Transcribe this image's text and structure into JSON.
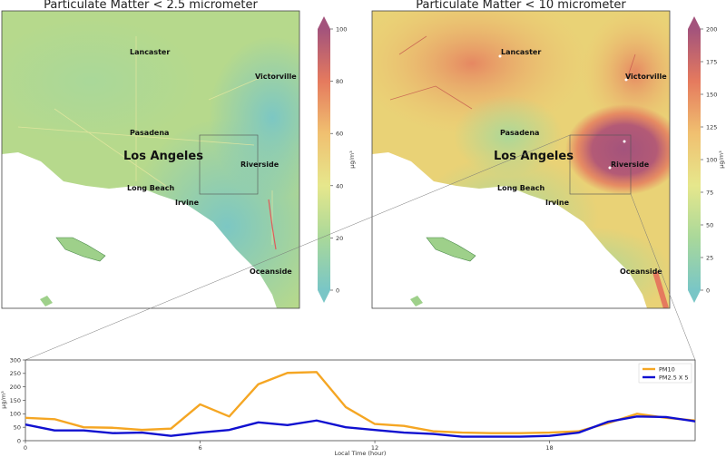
{
  "maps": [
    {
      "title": "Particulate Matter < 2.5 micrometer",
      "cities": {
        "lancaster": "Lancaster",
        "victorville": "Victorville",
        "pasadena": "Pasadena",
        "los_angeles": "Los Angeles",
        "riverside": "Riverside",
        "long_beach": "Long Beach",
        "irvine": "Irvine",
        "oceanside": "Oceanside"
      },
      "colorbar": {
        "min": 0,
        "max": 100,
        "ticks": [
          "0",
          "20",
          "40",
          "60",
          "80",
          "100"
        ],
        "unit": "μg/m³"
      },
      "base_color": "#b6d98c"
    },
    {
      "title": "Particulate Matter < 10 micrometer",
      "cities": {
        "lancaster": "Lancaster",
        "victorville": "Victorville",
        "pasadena": "Pasadena",
        "los_angeles": "Los Angeles",
        "riverside": "Riverside",
        "long_beach": "Long Beach",
        "irvine": "Irvine",
        "oceanside": "Oceanside"
      },
      "colorbar": {
        "min": 0,
        "max": 200,
        "ticks": [
          "0",
          "25",
          "50",
          "75",
          "100",
          "125",
          "150",
          "175",
          "200"
        ],
        "unit": "μg/m³"
      },
      "base_color": "#e9d276"
    }
  ],
  "colormap": [
    "#79c6c6",
    "#a9d89a",
    "#e6e78c",
    "#f0c070",
    "#e57a5e",
    "#a3537c"
  ],
  "chart_data": {
    "type": "line",
    "x": [
      0,
      1,
      2,
      3,
      4,
      5,
      6,
      7,
      8,
      9,
      10,
      11,
      12,
      13,
      14,
      15,
      16,
      17,
      18,
      19,
      20,
      21,
      22,
      23
    ],
    "series": [
      {
        "name": "PM10",
        "color": "#f5a623",
        "values": [
          85,
          80,
          50,
          48,
          40,
          45,
          135,
          90,
          210,
          252,
          255,
          125,
          62,
          55,
          35,
          30,
          28,
          28,
          30,
          35,
          65,
          100,
          85,
          75
        ]
      },
      {
        "name": "PM2.5 X 5",
        "color": "#1010d0",
        "values": [
          60,
          38,
          38,
          28,
          30,
          18,
          30,
          40,
          68,
          58,
          75,
          50,
          40,
          30,
          25,
          15,
          15,
          15,
          18,
          30,
          70,
          90,
          88,
          72
        ]
      }
    ],
    "xlabel": "Local Time (hour)",
    "ylabel": "μg/m³",
    "xticks": [
      0,
      6,
      12,
      18
    ],
    "yticks": [
      0,
      50,
      100,
      150,
      200,
      250,
      300
    ],
    "xlim": [
      0,
      23
    ],
    "ylim": [
      0,
      300
    ],
    "legend": "top-right"
  }
}
